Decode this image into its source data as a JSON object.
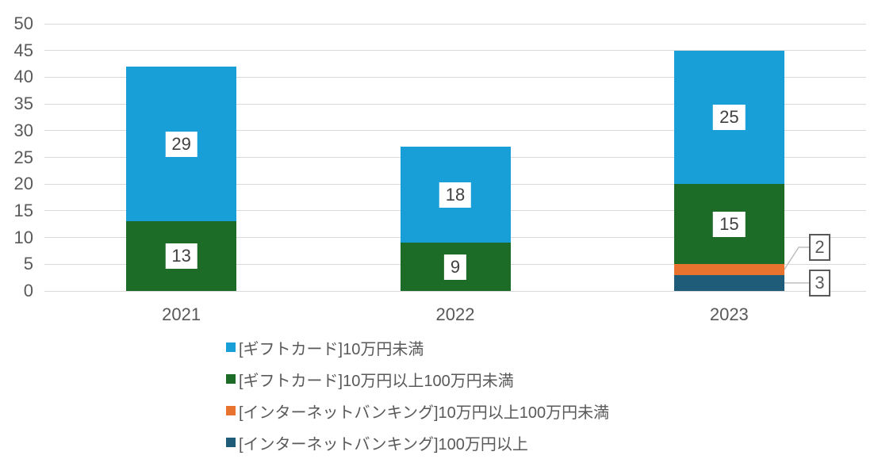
{
  "chart_data": {
    "type": "bar",
    "subtype": "stacked-column",
    "title": "",
    "xlabel": "",
    "ylabel": "",
    "categories": [
      "2021",
      "2022",
      "2023"
    ],
    "series": [
      {
        "id": "giftcard-under-100k",
        "name": "[ギフトカード]10万円未満",
        "color": "#189FD8",
        "values": [
          29,
          18,
          25
        ]
      },
      {
        "id": "giftcard-100k-to-1m",
        "name": "[ギフトカード]10万円以上100万円未満",
        "color": "#1C6B26",
        "values": [
          13,
          9,
          15
        ]
      },
      {
        "id": "netbanking-100k-to-1m",
        "name": "[インターネットバンキング]10万円以上100万円未満",
        "color": "#E8732E",
        "values": [
          0,
          0,
          2
        ]
      },
      {
        "id": "netbanking-over-1m",
        "name": "[インターネットバンキング]100万円以上",
        "color": "#1F5C7A",
        "values": [
          0,
          0,
          3
        ]
      }
    ],
    "stack_order_bottom_to_top": [
      3,
      2,
      1,
      0
    ],
    "ylim": [
      0,
      50
    ],
    "ytick_step": 5,
    "yticks": [
      0,
      5,
      10,
      15,
      20,
      25,
      30,
      35,
      40,
      45,
      50
    ],
    "grid": true,
    "legend_position": "bottom",
    "data_labels_shown": true,
    "callouts": [
      {
        "series": 2,
        "category": 2,
        "label": "2"
      },
      {
        "series": 3,
        "category": 2,
        "label": "3"
      }
    ]
  },
  "styles": {
    "background": "#FFFFFF",
    "gridline_color": "#D9D9D9",
    "axis_text_color": "#595959",
    "data_label_text_color": "#404040",
    "data_label_bg": "#FFFFFF",
    "callout_border_color": "#595959",
    "callout_text_color": "#595959",
    "leader_line_color": "#BFBFBF",
    "legend_text_color": "#595959"
  }
}
